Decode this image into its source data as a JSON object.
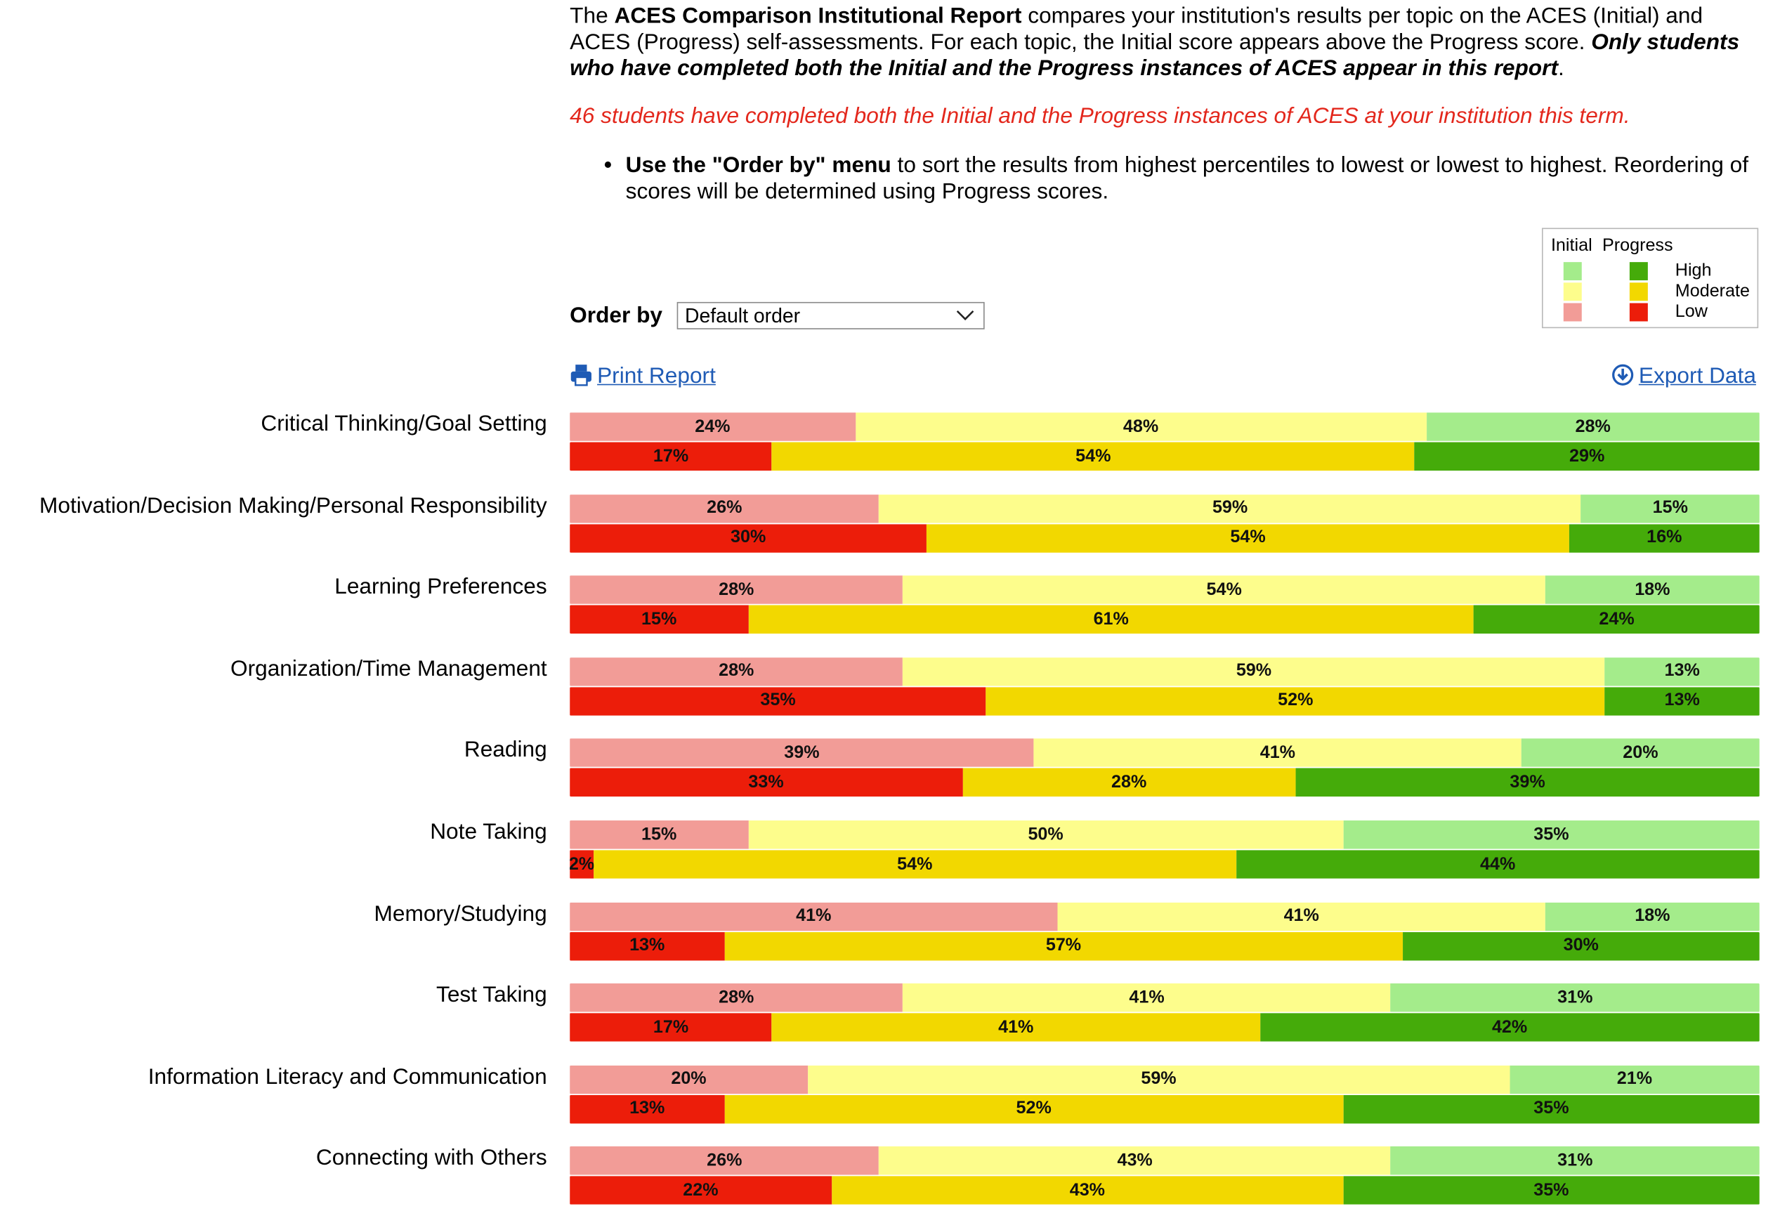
{
  "intro": {
    "p1_a": "The ",
    "p1_bold": "ACES Comparison Institutional Report",
    "p1_b": " compares your institution's results per topic on the ACES (Initial) and ACES (Progress) self-assessments. For each topic, the Initial score appears above the Progress score. ",
    "p1_italic": "Only students who have completed both the Initial and the Progress instances of ACES appear in this report",
    "p1_end": ".",
    "red_note": "46 students have completed both the Initial and the Progress instances of ACES at your institution this term.",
    "bullet_bold": "Use the \"Order by\" menu",
    "bullet_text": " to sort the results from highest percentiles to lowest or lowest to highest. Reordering of scores will be determined using Progress scores."
  },
  "legend": {
    "initial_header": "Initial",
    "progress_header": "Progress",
    "high": "High",
    "moderate": "Moderate",
    "low": "Low"
  },
  "controls": {
    "order_by_label": "Order by",
    "order_by_value": "Default order",
    "print_label": "Print Report",
    "export_label": "Export Data"
  },
  "colors": {
    "initial_low": "#f29c97",
    "initial_moderate": "#fdfd8c",
    "initial_high": "#a4ec8b",
    "progress_low": "#ec1d0a",
    "progress_moderate": "#f2d800",
    "progress_high": "#45ab0a",
    "link": "#1f5bb5"
  },
  "chart_data": {
    "type": "bar",
    "orientation": "horizontal-stacked-100",
    "segments": [
      "Low",
      "Moderate",
      "High"
    ],
    "categories": [
      "Critical Thinking/Goal Setting",
      "Motivation/Decision Making/Personal Responsibility",
      "Learning Preferences",
      "Organization/Time Management",
      "Reading",
      "Note Taking",
      "Memory/Studying",
      "Test Taking",
      "Information Literacy and Communication",
      "Connecting with Others"
    ],
    "series": [
      {
        "name": "Initial",
        "values": [
          [
            24,
            48,
            28
          ],
          [
            26,
            59,
            15
          ],
          [
            28,
            54,
            18
          ],
          [
            28,
            59,
            13
          ],
          [
            39,
            41,
            20
          ],
          [
            15,
            50,
            35
          ],
          [
            41,
            41,
            18
          ],
          [
            28,
            41,
            31
          ],
          [
            20,
            59,
            21
          ],
          [
            26,
            43,
            31
          ]
        ]
      },
      {
        "name": "Progress",
        "values": [
          [
            17,
            54,
            29
          ],
          [
            30,
            54,
            16
          ],
          [
            15,
            61,
            24
          ],
          [
            35,
            52,
            13
          ],
          [
            33,
            28,
            39
          ],
          [
            2,
            54,
            44
          ],
          [
            13,
            57,
            30
          ],
          [
            17,
            41,
            42
          ],
          [
            13,
            52,
            35
          ],
          [
            22,
            43,
            35
          ]
        ]
      }
    ]
  }
}
